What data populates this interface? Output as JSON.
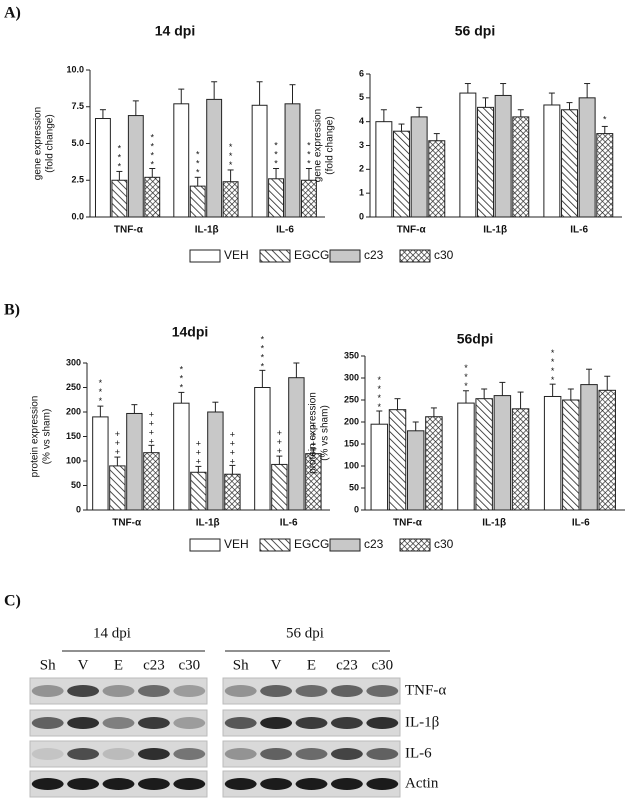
{
  "panel_labels": [
    "A)",
    "B)"
  ],
  "chart_data": [
    {
      "type": "bar",
      "title": "14 dpi",
      "ylabel": [
        "gene expression",
        "(fold change)"
      ],
      "categories": [
        "TNF-α",
        "IL-1β",
        "IL-6"
      ],
      "ylim": [
        0,
        10
      ],
      "yticks": [
        {
          "value": 0,
          "label": "0.0"
        },
        {
          "value": 2.5,
          "label": "2.5"
        },
        {
          "value": 5,
          "label": "5.0"
        },
        {
          "value": 7.5,
          "label": "7.5"
        },
        {
          "value": 10,
          "label": "10.0"
        }
      ],
      "legend": true,
      "series": [
        {
          "name": "VEH",
          "color": "#ffffff",
          "pattern": "solid",
          "values": [
            6.7,
            7.7,
            7.6
          ],
          "errors": [
            0.6,
            1.0,
            1.6
          ],
          "annotations": [
            null,
            null,
            null
          ]
        },
        {
          "name": "EGCG",
          "color": "#ffffff",
          "pattern": "diagonal",
          "values": [
            2.5,
            2.1,
            2.6
          ],
          "errors": [
            0.6,
            0.6,
            0.7
          ],
          "annotations": [
            "***",
            "***",
            "***"
          ]
        },
        {
          "name": "c23",
          "color": "#c8c8c8",
          "pattern": "solid",
          "values": [
            6.9,
            8.0,
            7.7
          ],
          "errors": [
            1.0,
            1.2,
            1.3
          ],
          "annotations": [
            null,
            null,
            null
          ]
        },
        {
          "name": "c30",
          "color": "#ffffff",
          "pattern": "crosshatch",
          "values": [
            2.7,
            2.4,
            2.5
          ],
          "errors": [
            0.6,
            0.8,
            0.8
          ],
          "annotations": [
            "****",
            "***",
            "***"
          ]
        }
      ]
    },
    {
      "type": "bar",
      "title": "56 dpi",
      "ylabel": [
        "gene expression",
        "(fold change)"
      ],
      "categories": [
        "TNF-α",
        "IL-1β",
        "IL-6"
      ],
      "ylim": [
        0,
        6
      ],
      "yticks": [
        0,
        1,
        2,
        3,
        4,
        5,
        6
      ],
      "legend": false,
      "series": [
        {
          "color": "#ffffff",
          "pattern": "solid",
          "values": [
            4.0,
            5.2,
            4.7
          ],
          "errors": [
            0.5,
            0.4,
            0.5
          ],
          "annotations": [
            null,
            null,
            null
          ]
        },
        {
          "color": "#ffffff",
          "pattern": "diagonal",
          "values": [
            3.6,
            4.6,
            4.5
          ],
          "errors": [
            0.3,
            0.4,
            0.3
          ],
          "annotations": [
            null,
            null,
            null
          ]
        },
        {
          "color": "#c8c8c8",
          "pattern": "solid",
          "values": [
            4.2,
            5.1,
            5.0
          ],
          "errors": [
            0.4,
            0.5,
            0.6
          ],
          "annotations": [
            null,
            null,
            null
          ]
        },
        {
          "color": "#ffffff",
          "pattern": "crosshatch",
          "values": [
            3.2,
            4.2,
            3.5
          ],
          "errors": [
            0.3,
            0.3,
            0.3
          ],
          "annotations": [
            null,
            null,
            "*"
          ]
        }
      ]
    },
    {
      "type": "bar",
      "title": "14dpi",
      "ylabel": [
        "protein expression",
        "(% vs sham)"
      ],
      "categories": [
        "TNF-α",
        "IL-1β",
        "IL-6"
      ],
      "ylim": [
        0,
        300
      ],
      "yticks": [
        0,
        50,
        100,
        150,
        200,
        250,
        300
      ],
      "legend": true,
      "series": [
        {
          "name": "VEH",
          "color": "#ffffff",
          "pattern": "solid",
          "values": [
            190,
            218,
            250
          ],
          "errors": [
            22,
            22,
            35
          ],
          "annotations": [
            "***",
            "***",
            "****"
          ]
        },
        {
          "name": "EGCG",
          "color": "#ffffff",
          "pattern": "diagonal",
          "values": [
            90,
            77,
            93
          ],
          "errors": [
            18,
            12,
            17
          ],
          "annotations": [
            "+++",
            "+++",
            "+++"
          ]
        },
        {
          "name": "c23",
          "color": "#c8c8c8",
          "pattern": "solid",
          "values": [
            197,
            200,
            270
          ],
          "errors": [
            18,
            20,
            30
          ],
          "annotations": [
            null,
            null,
            null
          ]
        },
        {
          "name": "c30",
          "color": "#ffffff",
          "pattern": "crosshatch",
          "values": [
            117,
            73,
            115
          ],
          "errors": [
            15,
            18,
            10
          ],
          "annotations": [
            "++++",
            "++++",
            "+++"
          ]
        }
      ]
    },
    {
      "type": "bar",
      "title": "56dpi",
      "ylabel": [
        "protein expression",
        "(% vs sham)"
      ],
      "categories": [
        "TNF-α",
        "IL-1β",
        "IL-6"
      ],
      "ylim": [
        0,
        350
      ],
      "yticks": [
        0,
        50,
        100,
        150,
        200,
        250,
        300,
        350
      ],
      "legend": false,
      "series": [
        {
          "color": "#ffffff",
          "pattern": "solid",
          "values": [
            195,
            243,
            258
          ],
          "errors": [
            30,
            28,
            28
          ],
          "annotations": [
            "****",
            "***",
            "****"
          ]
        },
        {
          "color": "#ffffff",
          "pattern": "diagonal",
          "values": [
            228,
            253,
            250
          ],
          "errors": [
            25,
            22,
            25
          ],
          "annotations": [
            null,
            null,
            null
          ]
        },
        {
          "color": "#c8c8c8",
          "pattern": "solid",
          "values": [
            180,
            260,
            285
          ],
          "errors": [
            20,
            30,
            35
          ],
          "annotations": [
            null,
            null,
            null
          ]
        },
        {
          "color": "#ffffff",
          "pattern": "crosshatch",
          "values": [
            212,
            230,
            272
          ],
          "errors": [
            20,
            38,
            32
          ],
          "annotations": [
            null,
            null,
            null
          ]
        }
      ]
    }
  ],
  "blot": {
    "panel_label": "C)",
    "groups": [
      "14 dpi",
      "56 dpi"
    ],
    "lanes": [
      [
        "Sh",
        "V",
        "E",
        "c23",
        "c30"
      ],
      [
        "Sh",
        "V",
        "E",
        "c23",
        "c30"
      ]
    ],
    "rows": [
      "TNF-α",
      "IL-1β",
      "IL-6",
      "Actin"
    ]
  }
}
